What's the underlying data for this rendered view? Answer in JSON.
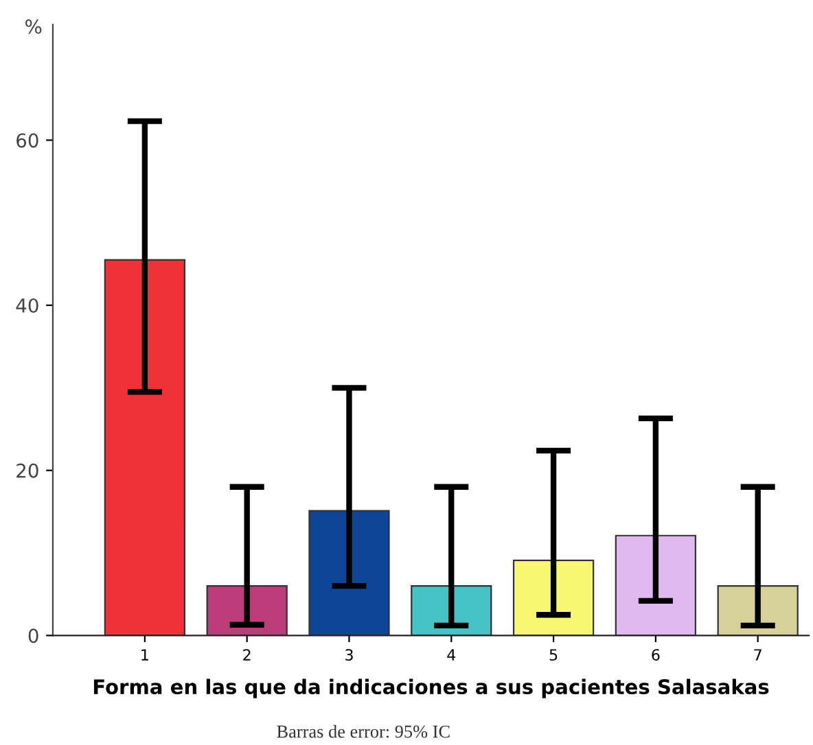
{
  "chart_data": {
    "type": "bar",
    "categories": [
      "1",
      "2",
      "3",
      "4",
      "5",
      "6",
      "7"
    ],
    "values": [
      45.5,
      6.0,
      15.1,
      6.0,
      9.1,
      12.1,
      6.0
    ],
    "colors": [
      "#f03238",
      "#bb3e7b",
      "#0f4596",
      "#45c3c5",
      "#f9f772",
      "#dfb9ef",
      "#d6d199"
    ],
    "errors": [
      [
        29.5,
        62.3
      ],
      [
        1.3,
        18.0
      ],
      [
        6.0,
        30.0
      ],
      [
        1.2,
        18.0
      ],
      [
        2.5,
        22.4
      ],
      [
        4.2,
        26.3
      ],
      [
        1.2,
        18.0
      ]
    ],
    "ylabel": "%",
    "xlabel": "Forma en las que da indicaciones a sus pacientes Salasakas",
    "annotations": [
      "Barras de error: 95% IC"
    ],
    "ylim": [
      0,
      74
    ],
    "yticks": [
      0,
      20,
      40,
      60
    ],
    "grid": false,
    "legend": false
  }
}
